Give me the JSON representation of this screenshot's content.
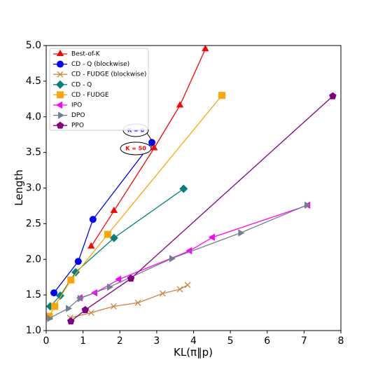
{
  "chart_data": {
    "type": "line",
    "x_label": "KL(π‖p)",
    "y_label": "Length",
    "xlim": [
      0,
      8
    ],
    "ylim": [
      1.0,
      5.0
    ],
    "xticks": [
      0,
      1,
      2,
      3,
      4,
      5,
      6,
      7,
      8
    ],
    "yticks": [
      {
        "value": 1.0,
        "label": "1.0"
      },
      {
        "value": 1.5,
        "label": "1.5"
      },
      {
        "value": 2.0,
        "label": "2.0"
      },
      {
        "value": 2.5,
        "label": "2.5"
      },
      {
        "value": 3.0,
        "label": "3.0"
      },
      {
        "value": 3.5,
        "label": "3.5"
      },
      {
        "value": 4.0,
        "label": "4.0"
      },
      {
        "value": 4.5,
        "label": "4.5"
      },
      {
        "value": 5.0,
        "label": "5.0"
      }
    ],
    "legend": "upper left",
    "annotations": [
      "K = 6",
      "K = 50"
    ],
    "series": [
      {
        "name": "Best-of-K",
        "color": "#ff0000",
        "marker": "triangle-up",
        "x": [
          1.22,
          1.84,
          2.93,
          3.63,
          4.32
        ],
        "values": [
          2.18,
          2.68,
          3.56,
          4.16,
          4.95
        ]
      },
      {
        "name": "CD - Q (blockwise)",
        "color": "#0000ff",
        "marker": "circle",
        "x": [
          0.21,
          0.87,
          1.27,
          2.87
        ],
        "values": [
          1.53,
          1.97,
          2.56,
          3.64
        ]
      },
      {
        "name": "CD - FUDGE (blockwise)",
        "color": "#cd853f",
        "marker": "x",
        "x": [
          0.65,
          1.22,
          1.83,
          2.49,
          3.16,
          3.63,
          3.84
        ],
        "values": [
          1.18,
          1.25,
          1.34,
          1.39,
          1.52,
          1.58,
          1.64
        ]
      },
      {
        "name": "CD - Q",
        "color": "#008080",
        "marker": "diamond",
        "x": [
          0.11,
          0.38,
          0.8,
          1.84,
          3.73
        ],
        "values": [
          1.34,
          1.49,
          1.82,
          2.3,
          2.99
        ]
      },
      {
        "name": "CD - FUDGE",
        "color": "#ffa500",
        "marker": "square",
        "x": [
          0.08,
          0.23,
          0.67,
          1.67,
          4.77
        ],
        "values": [
          1.2,
          1.34,
          1.71,
          2.35,
          4.3
        ]
      },
      {
        "name": "IPO",
        "color": "#ff00ff",
        "marker": "triangle-left",
        "x": [
          0.93,
          1.33,
          1.98,
          3.9,
          4.52,
          7.11
        ],
        "values": [
          1.46,
          1.53,
          1.72,
          2.12,
          2.31,
          2.76
        ]
      },
      {
        "name": "DPO",
        "color": "#708090",
        "marker": "triangle-right",
        "x": [
          0.08,
          0.59,
          0.91,
          1.71,
          3.4,
          5.27,
          7.07
        ],
        "values": [
          1.17,
          1.31,
          1.45,
          1.61,
          2.01,
          2.37,
          2.76
        ]
      },
      {
        "name": "PPO",
        "color": "#800080",
        "marker": "pentagon",
        "x": [
          0.67,
          1.06,
          2.3,
          7.78
        ],
        "values": [
          1.13,
          1.29,
          1.73,
          4.29
        ]
      }
    ]
  }
}
